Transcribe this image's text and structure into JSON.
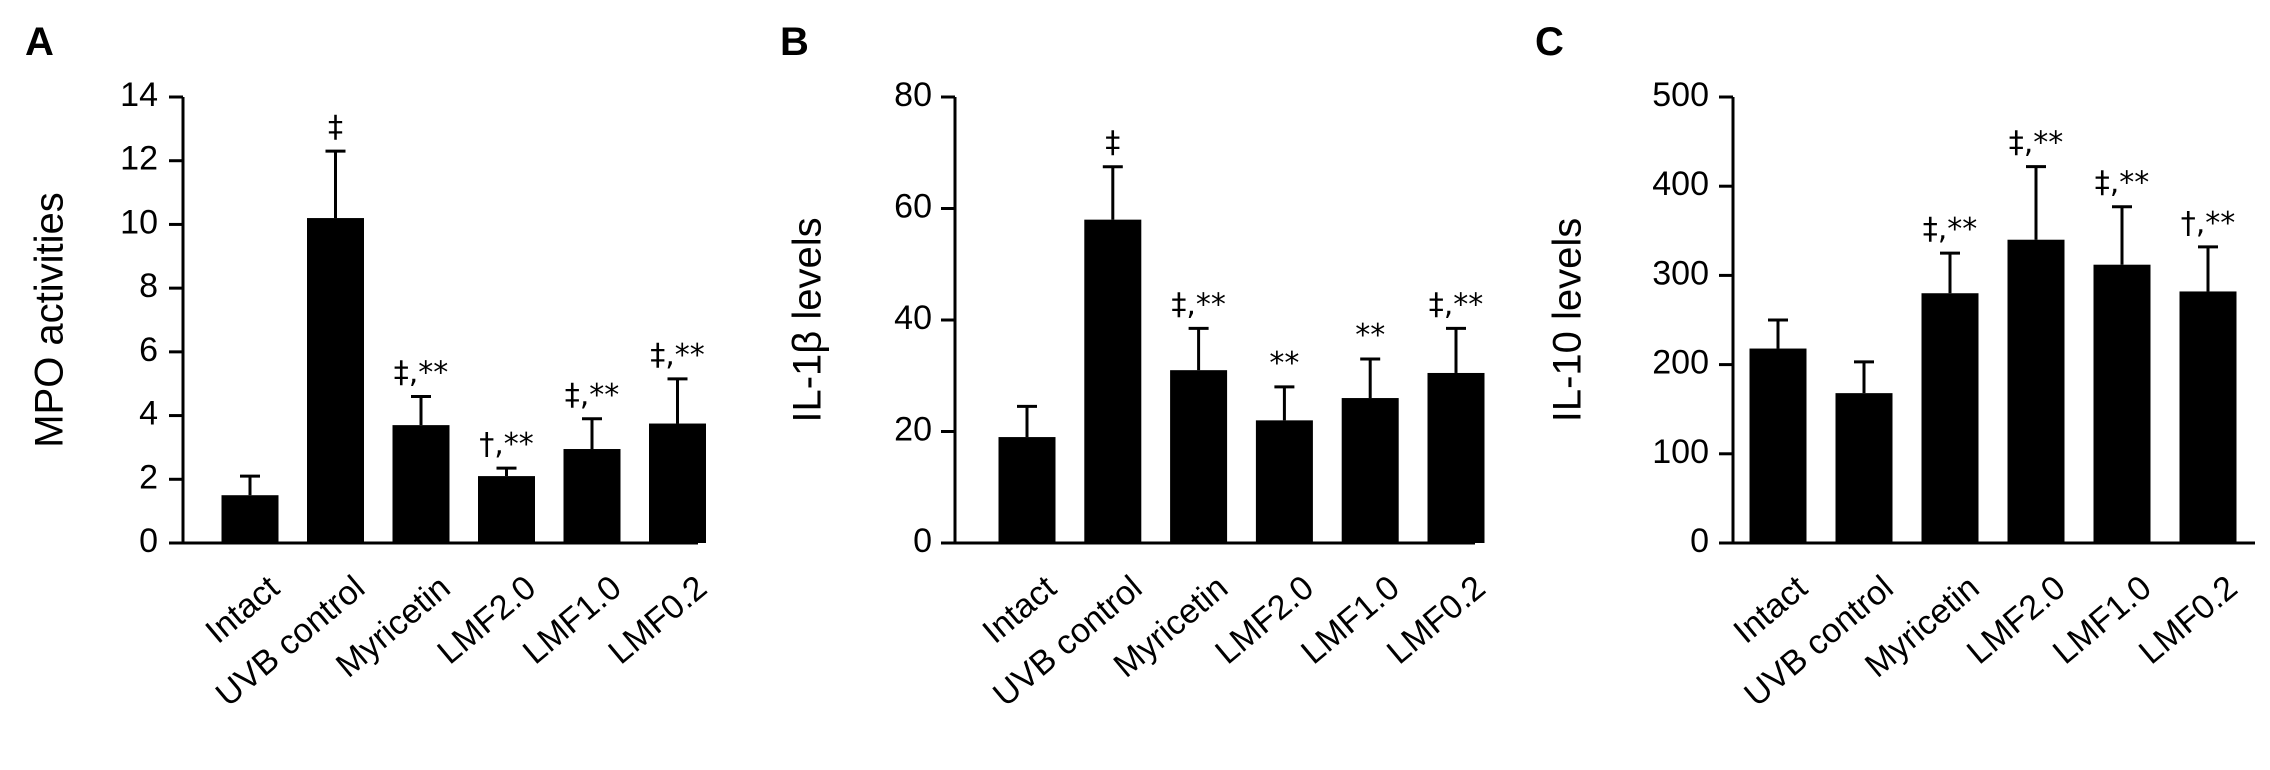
{
  "chart_data": [
    {
      "type": "bar",
      "panel": "A",
      "ylabel": "MPO activities",
      "ylim": [
        0,
        14
      ],
      "yticks": [
        0,
        2,
        4,
        6,
        8,
        10,
        12,
        14
      ],
      "categories": [
        "Intact",
        "UVB control",
        "Myricetin",
        "LMF2.0",
        "LMF1.0",
        "LMF0.2"
      ],
      "values": [
        1.5,
        10.2,
        3.7,
        2.1,
        2.95,
        3.75
      ],
      "errors": [
        0.6,
        2.1,
        0.9,
        0.25,
        0.95,
        1.4
      ],
      "annotations": [
        "",
        "‡",
        "‡,**",
        "†,**",
        "‡,**",
        "‡,**"
      ],
      "bar_color": "#000000"
    },
    {
      "type": "bar",
      "panel": "B",
      "ylabel": "IL-1β levels",
      "ylim": [
        0,
        80
      ],
      "yticks": [
        0,
        20,
        40,
        60,
        80
      ],
      "categories": [
        "Intact",
        "UVB control",
        "Myricetin",
        "LMF2.0",
        "LMF1.0",
        "LMF0.2"
      ],
      "values": [
        19,
        58,
        31,
        22,
        26,
        30.5
      ],
      "errors": [
        5.5,
        9.5,
        7.5,
        6,
        7,
        8
      ],
      "annotations": [
        "",
        "‡",
        "‡,**",
        "**",
        "**",
        "‡,**"
      ],
      "bar_color": "#000000"
    },
    {
      "type": "bar",
      "panel": "C",
      "ylabel": "IL-10 levels",
      "ylim": [
        0,
        500
      ],
      "yticks": [
        0,
        100,
        200,
        300,
        400,
        500
      ],
      "categories": [
        "Intact",
        "UVB control",
        "Myricetin",
        "LMF2.0",
        "LMF1.0",
        "LMF0.2"
      ],
      "values": [
        218,
        168,
        280,
        340,
        312,
        282
      ],
      "errors": [
        32,
        35,
        45,
        82,
        65,
        50
      ],
      "annotations": [
        "",
        "",
        "‡,**",
        "‡,**",
        "‡,**",
        "†,**"
      ],
      "bar_color": "#000000"
    }
  ]
}
